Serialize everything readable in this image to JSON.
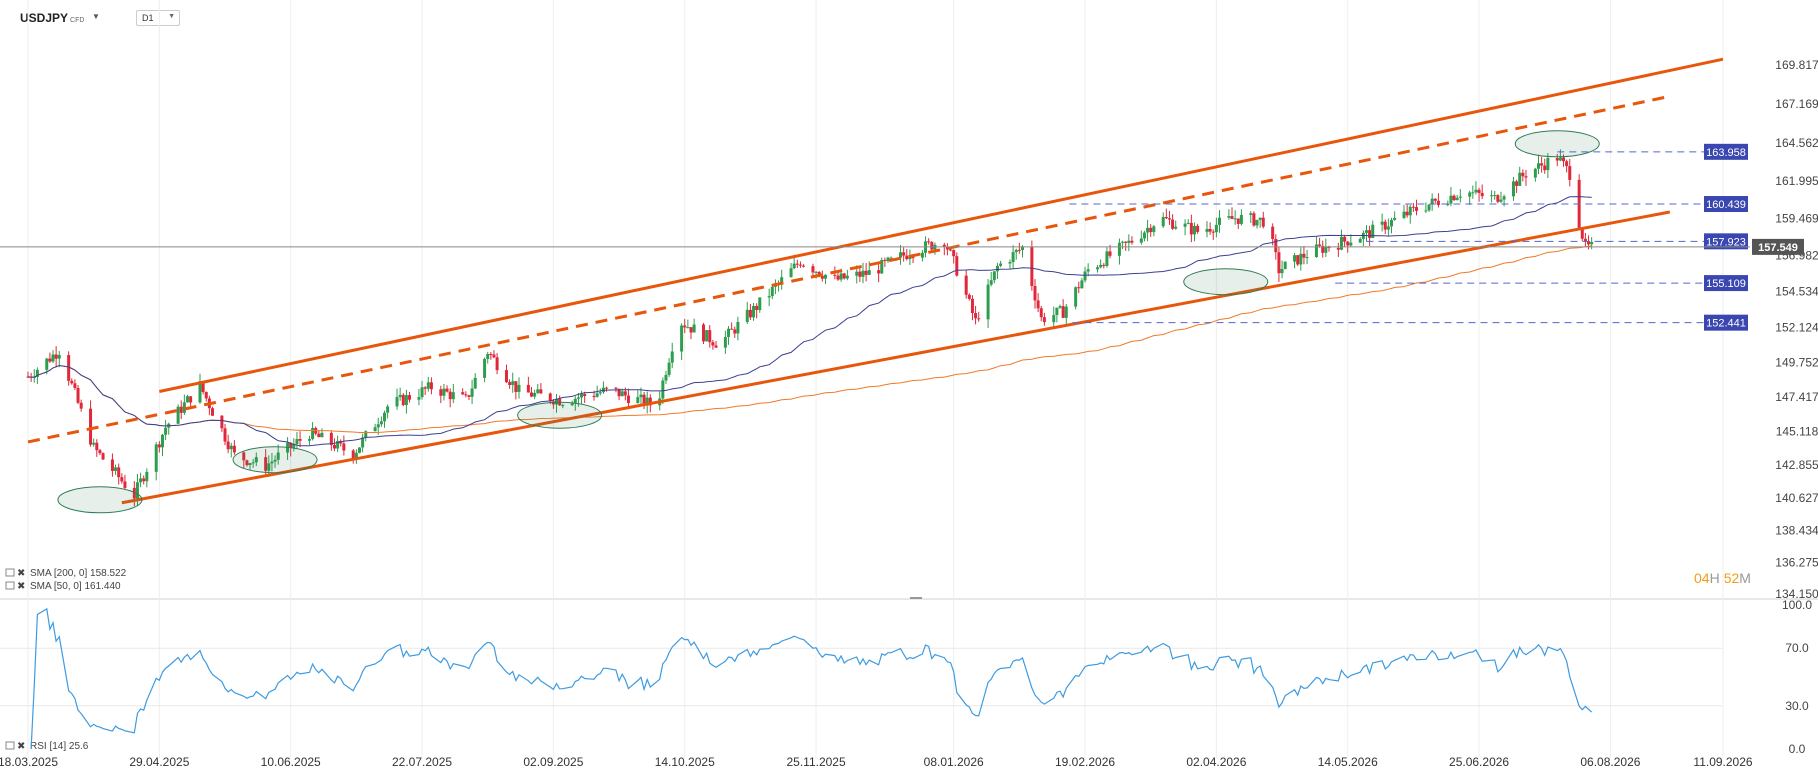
{
  "header": {
    "symbol": "USDJPY",
    "instrument_type": "CFD",
    "timeframe": "D1",
    "caret_icon": "chevron-down-icon"
  },
  "chart_data": {
    "type": "candlestick",
    "symbol": "USDJPY",
    "timeframe": "D1",
    "price_axis": [
      "169.817",
      "167.169",
      "164.562",
      "161.995",
      "159.469",
      "157.549",
      "156.982",
      "154.534",
      "152.124",
      "149.752",
      "147.417",
      "145.118",
      "142.855",
      "140.627",
      "138.434",
      "136.275",
      "134.150"
    ],
    "price_ticks": [
      169.817,
      167.169,
      164.562,
      161.995,
      159.469,
      156.982,
      154.534,
      152.124,
      149.752,
      147.417,
      145.118,
      142.855,
      140.627,
      138.434,
      136.275,
      134.15
    ],
    "ylim": [
      134.15,
      171.9
    ],
    "x_dates": [
      "18.03.2025",
      "29.04.2025",
      "10.06.2025",
      "22.07.2025",
      "02.09.2025",
      "14.10.2025",
      "25.11.2025",
      "08.01.2026",
      "19.02.2026",
      "02.04.2026",
      "14.05.2026",
      "25.06.2026",
      "06.08.2026",
      "11.09.2026"
    ],
    "current_price": 157.549,
    "current_price_label": "157.549",
    "level_tags": [
      {
        "value": 163.958,
        "label": "163.958"
      },
      {
        "value": 160.439,
        "label": "160.439"
      },
      {
        "value": 157.923,
        "label": "157.923"
      },
      {
        "value": 155.109,
        "label": "155.109"
      },
      {
        "value": 152.441,
        "label": "152.441"
      }
    ],
    "sma200_legend": "SMA [200, 0] 158.522",
    "sma50_legend": "SMA [50, 0] 161.440",
    "countdown_hours": "04",
    "countdown_h_unit": "H",
    "countdown_minutes": "52",
    "countdown_m_unit": "M",
    "colors": {
      "up": "#2e9e4e",
      "down": "#e0283a",
      "channel": "#e8560c",
      "sma50": "#3b3f8f",
      "sma200": "#f07a2a",
      "rsi": "#3d9be0",
      "level_tag": "#3b47b0",
      "level_line": "#5566cc",
      "ellipse": "#2f7d55",
      "current_tag": "#555555"
    },
    "trend_channel": {
      "upper": {
        "start": [
          "29.04.2025",
          147.8
        ],
        "end": [
          "11.09.2026",
          170.2
        ]
      },
      "middle": {
        "start": [
          "18.03.2025",
          144.4
        ],
        "end": [
          "25.08.2026",
          167.7
        ]
      },
      "lower": {
        "start": [
          "17.04.2025",
          140.3
        ],
        "end": [
          "25.08.2026",
          159.9
        ]
      }
    },
    "rsi": {
      "label": "RSI [14] 25.6",
      "value": 25.6,
      "axis": [
        "100.0",
        "70.0",
        "30.0",
        "0.0"
      ],
      "levels": [
        100,
        70,
        30,
        0
      ]
    },
    "candles_summary": "Daily candles from Mar 2025 to Jul 2026 trending up inside a rising channel; last candles show a sharp drop to ~157.5"
  }
}
